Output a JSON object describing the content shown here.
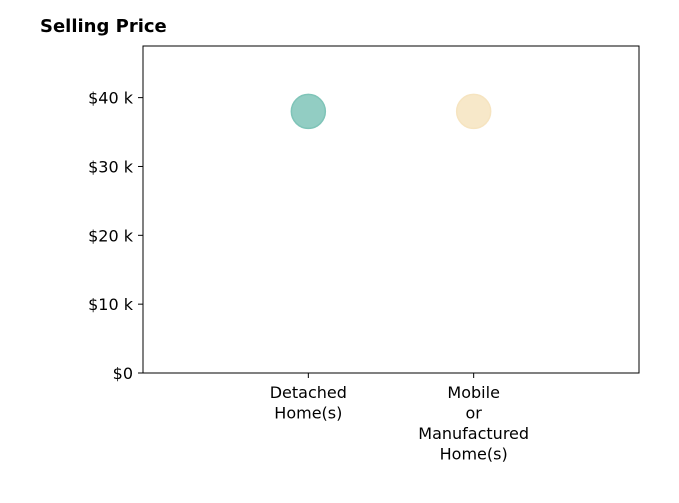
{
  "chart_data": {
    "type": "scatter",
    "title": "Selling Price",
    "categories": [
      [
        "Detached",
        "Home(s)"
      ],
      [
        "Mobile",
        "or",
        "Manufactured",
        "Home(s)"
      ]
    ],
    "points": [
      {
        "category_index": 0,
        "value": 38000,
        "color": "#7fc4b8"
      },
      {
        "category_index": 1,
        "value": 38000,
        "color": "#f6e4c0"
      }
    ],
    "y_ticks": [
      {
        "value": 0,
        "label": "$0"
      },
      {
        "value": 10000,
        "label": "$10 k"
      },
      {
        "value": 20000,
        "label": "$20 k"
      },
      {
        "value": 30000,
        "label": "$30 k"
      },
      {
        "value": 40000,
        "label": "$40 k"
      }
    ],
    "ylim": [
      0,
      47500
    ],
    "xlim": [
      -1,
      2
    ],
    "xlabel": "",
    "ylabel": "",
    "grid": false
  }
}
